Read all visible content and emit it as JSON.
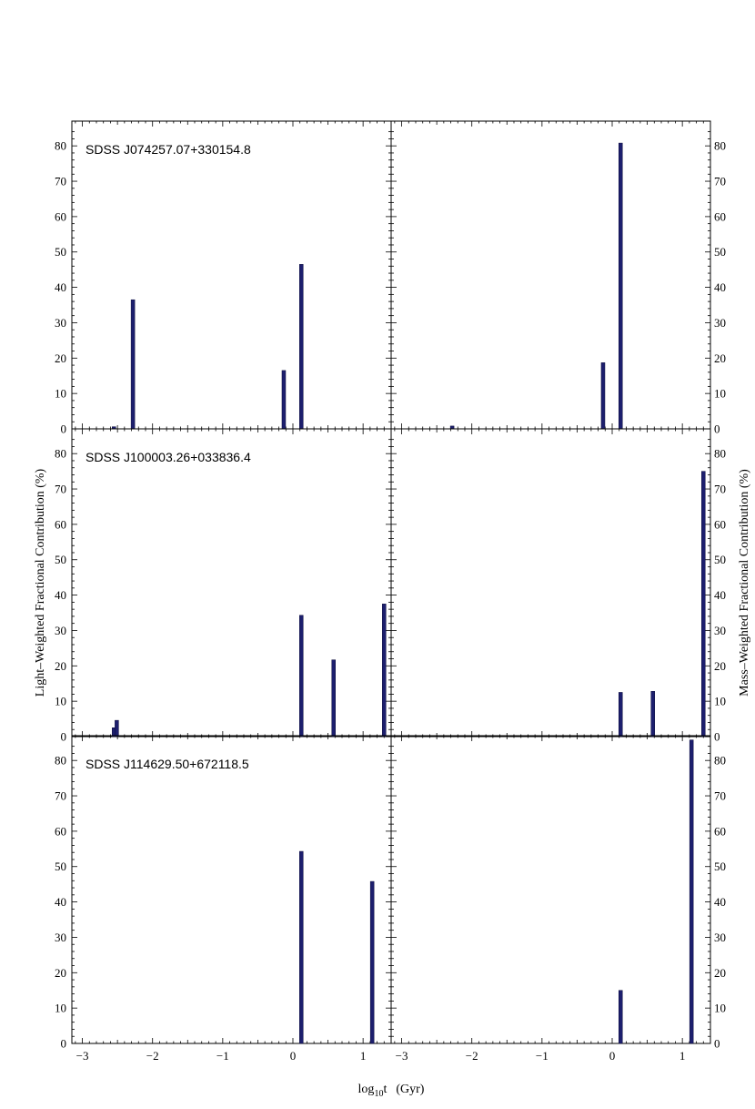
{
  "figure": {
    "xlabel_main": "log",
    "xlabel_sub": "10",
    "xlabel_rest": "t",
    "xlabel_unit": "(Gyr)",
    "ylabel_left": "Light–Weighted Fractional Contribution  (%)",
    "ylabel_right": "Mass–Weighted Fractional Contribution  (%)"
  },
  "chart_data": [
    {
      "type": "bar",
      "row": 0,
      "col": 0,
      "title": "SDSS J074257.07+330154.8",
      "xlim": [
        -3.15,
        1.4
      ],
      "ylim": [
        0,
        87
      ],
      "x": [
        -2.55,
        -2.28,
        -0.13,
        0.12
      ],
      "values": [
        0.6,
        36.5,
        16.5,
        46.5
      ],
      "color": "#1d1f6e",
      "grid": false
    },
    {
      "type": "bar",
      "row": 0,
      "col": 1,
      "title": "",
      "xlim": [
        -3.15,
        1.4
      ],
      "ylim": [
        0,
        87
      ],
      "x": [
        -2.28,
        -0.13,
        0.12
      ],
      "values": [
        0.8,
        18.7,
        80.8
      ],
      "color": "#1d1f6e",
      "grid": false
    },
    {
      "type": "bar",
      "row": 1,
      "col": 0,
      "title": "SDSS J100003.26+033836.4",
      "xlim": [
        -3.15,
        1.4
      ],
      "ylim": [
        0,
        87
      ],
      "x": [
        -2.55,
        -2.51,
        0.12,
        0.58,
        1.3
      ],
      "values": [
        2.5,
        4.6,
        34.3,
        21.7,
        37.5
      ],
      "color": "#1d1f6e",
      "grid": false
    },
    {
      "type": "bar",
      "row": 1,
      "col": 1,
      "title": "",
      "xlim": [
        -3.15,
        1.4
      ],
      "ylim": [
        0,
        87
      ],
      "x": [
        0.12,
        0.58,
        1.3
      ],
      "values": [
        12.5,
        12.8,
        75.0
      ],
      "color": "#1d1f6e",
      "grid": false
    },
    {
      "type": "bar",
      "row": 2,
      "col": 0,
      "title": "SDSS J114629.50+672118.5",
      "xlim": [
        -3.15,
        1.4
      ],
      "ylim": [
        0,
        87
      ],
      "x": [
        0.12,
        1.13
      ],
      "values": [
        54.3,
        45.8
      ],
      "color": "#1d1f6e",
      "grid": false
    },
    {
      "type": "bar",
      "row": 2,
      "col": 1,
      "title": "",
      "xlim": [
        -3.15,
        1.4
      ],
      "ylim": [
        0,
        87
      ],
      "x": [
        0.12,
        1.13
      ],
      "values": [
        15.0,
        85.8
      ],
      "color": "#1d1f6e",
      "grid": false
    }
  ],
  "axes": {
    "y_ticks": [
      0,
      10,
      20,
      30,
      40,
      50,
      60,
      70,
      80
    ],
    "x_ticks": [
      -3,
      -2,
      -1,
      0,
      1
    ],
    "x_tick_labels": [
      "−3",
      "−2",
      "−1",
      "0",
      "1"
    ]
  }
}
